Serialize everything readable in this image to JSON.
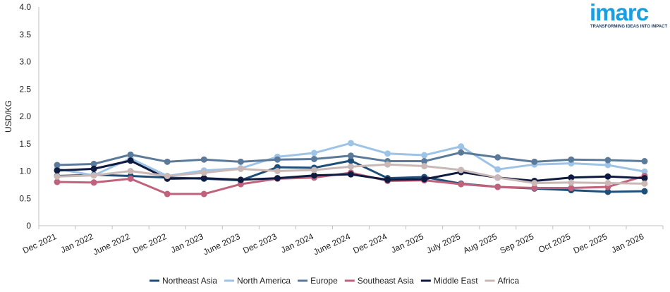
{
  "logo": {
    "name": "imarc",
    "tagline": "TRANSFORMING IDEAS INTO IMPACT"
  },
  "chart_data": {
    "type": "line",
    "title": "",
    "xlabel": "",
    "ylabel": "USD/KG",
    "ylim": [
      0,
      4.0
    ],
    "y_ticks": [
      "0",
      "0.5",
      "1.0",
      "1.5",
      "2.0",
      "2.5",
      "3.0",
      "3.5",
      "4.0"
    ],
    "y_tick_values": [
      0,
      0.5,
      1.0,
      1.5,
      2.0,
      2.5,
      3.0,
      3.5,
      4.0
    ],
    "grid": "none",
    "legend_position": "bottom",
    "categories": [
      "Dec 2021",
      "Jan 2022",
      "June 2022",
      "Dec 2022",
      "Jan 2023",
      "June 2023",
      "Dec 2023",
      "Jan 2024",
      "June 2024",
      "Dec 2024",
      "Jan 2025",
      "July 2025",
      "Aug 2025",
      "Sep 2025",
      "Oct 2025",
      "Dec 2025",
      "Jan 2026"
    ],
    "series": [
      {
        "name": "Northeast Asia",
        "color": "#1f4e79",
        "values": [
          0.91,
          0.93,
          0.91,
          0.88,
          0.86,
          0.83,
          1.07,
          1.06,
          1.19,
          0.87,
          0.89,
          0.77,
          0.71,
          0.68,
          0.65,
          0.62,
          0.63
        ]
      },
      {
        "name": "North America",
        "color": "#9dc3e6",
        "values": [
          1.04,
          0.92,
          1.23,
          0.91,
          1.01,
          1.05,
          1.26,
          1.33,
          1.51,
          1.32,
          1.29,
          1.45,
          1.03,
          1.12,
          1.14,
          1.11,
          0.99
        ]
      },
      {
        "name": "Europe",
        "color": "#5b7a99",
        "values": [
          1.11,
          1.13,
          1.3,
          1.17,
          1.21,
          1.17,
          1.21,
          1.22,
          1.28,
          1.18,
          1.18,
          1.34,
          1.25,
          1.17,
          1.21,
          1.2,
          1.18
        ]
      },
      {
        "name": "Southeast Asia",
        "color": "#c0627b",
        "values": [
          0.8,
          0.79,
          0.86,
          0.58,
          0.58,
          0.76,
          0.86,
          0.88,
          0.97,
          0.82,
          0.83,
          0.76,
          0.71,
          0.69,
          0.69,
          0.71,
          0.91
        ]
      },
      {
        "name": "Middle East",
        "color": "#0f1a40",
        "values": [
          1.01,
          1.04,
          1.19,
          0.86,
          0.87,
          0.84,
          0.87,
          0.92,
          0.94,
          0.84,
          0.85,
          0.98,
          0.88,
          0.82,
          0.88,
          0.9,
          0.87
        ]
      },
      {
        "name": "Africa",
        "color": "#c9b8b6",
        "values": [
          0.9,
          0.92,
          1.0,
          0.91,
          0.97,
          1.04,
          1.0,
          1.02,
          1.08,
          1.12,
          1.09,
          1.02,
          0.88,
          0.78,
          0.79,
          0.78,
          0.77
        ]
      }
    ]
  }
}
